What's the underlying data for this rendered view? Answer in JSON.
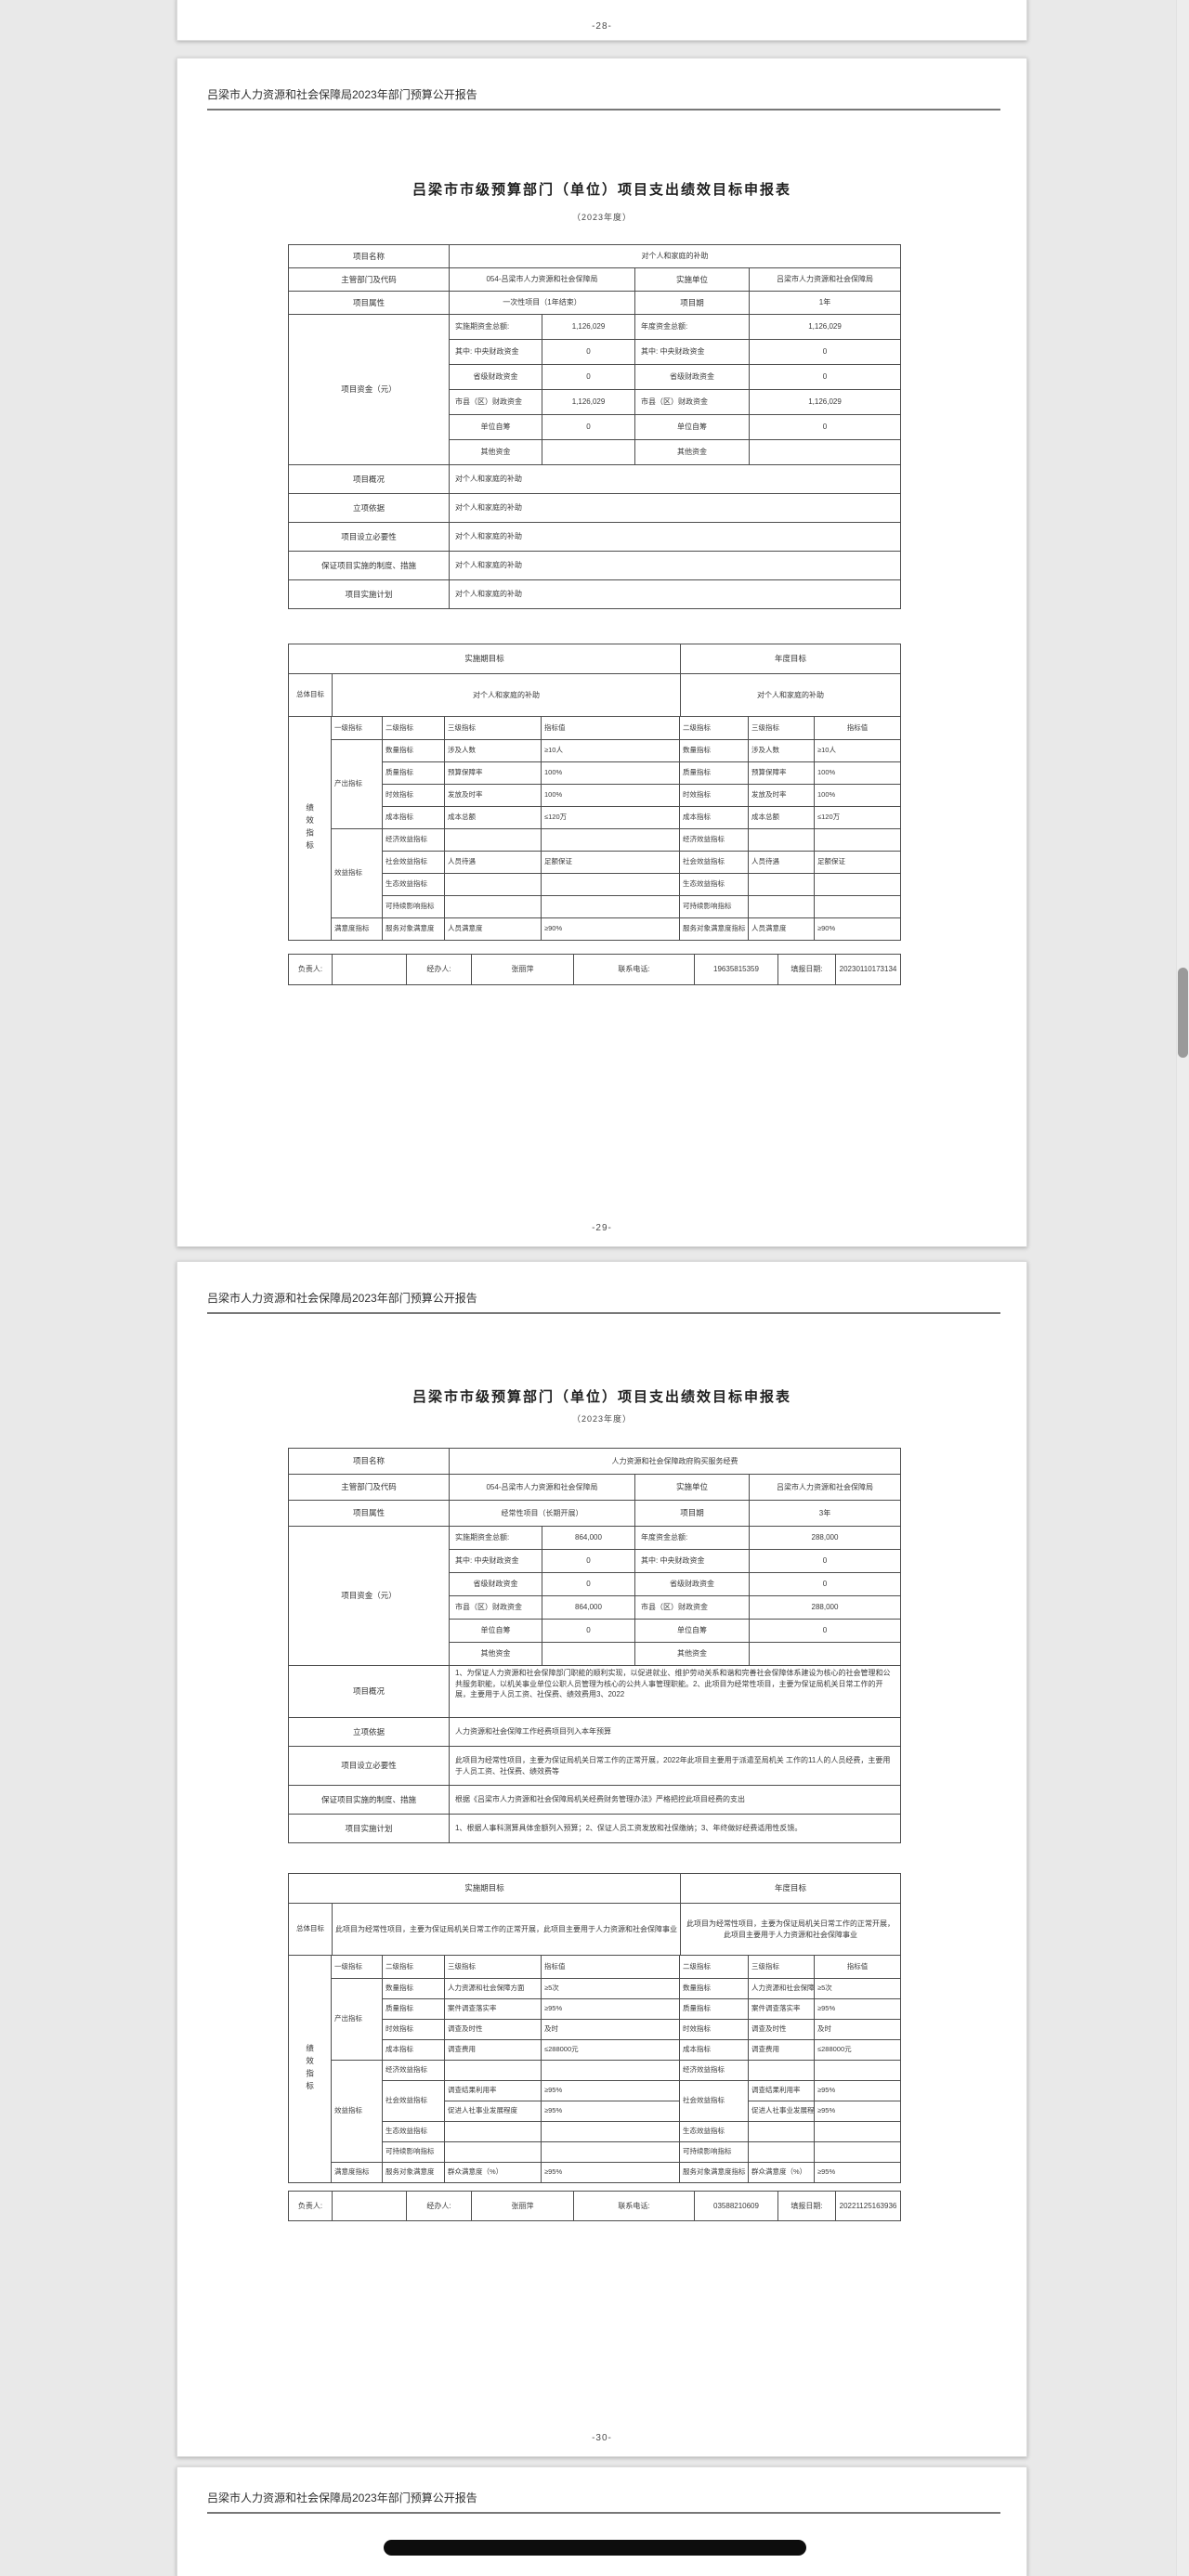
{
  "prev_page_number": "-28-",
  "colors": {
    "canvas": "#e9e9e9",
    "page": "#ffffff",
    "table_border": "#4d4d4d",
    "text": "#333333",
    "scroll_thumb": "#9a9a9a",
    "redaction": "#0d0d0d"
  },
  "next_page": {
    "header": "吕梁市人力资源和社会保障局2023年部门预算公开报告"
  },
  "pages": [
    {
      "page_number": "-29-",
      "header": "吕梁市人力资源和社会保障局2023年部门预算公开报告",
      "title": "吕梁市市级预算部门（单位）项目支出绩效目标申报表",
      "subtitle": "（2023年度）",
      "info": {
        "name_label": "项目名称",
        "name": "对个人和家庭的补助",
        "dept_label": "主管部门及代码",
        "dept": "054-吕梁市人力资源和社会保障局",
        "impl_label": "实施单位",
        "impl": "吕梁市人力资源和社会保障局",
        "attr_label": "项目属性",
        "attr": "一次性项目（1年结束）",
        "period_label": "项目期",
        "period": "1年"
      },
      "funds": {
        "label": "项目资金（元）",
        "rows": [
          [
            "实施期资金总额:",
            "1,126,029",
            "年度资金总额:",
            "1,126,029"
          ],
          [
            "其中: 中央财政资金",
            "0",
            "其中: 中央财政资金",
            "0"
          ],
          [
            "省级财政资金",
            "0",
            "省级财政资金",
            "0"
          ],
          [
            "市县（区）财政资金",
            "1,126,029",
            "市县（区）财政资金",
            "1,126,029"
          ],
          [
            "单位自筹",
            "0",
            "单位自筹",
            "0"
          ],
          [
            "其他资金",
            "",
            "其他资金",
            ""
          ]
        ]
      },
      "descriptions": [
        {
          "label": "项目概况",
          "text": "对个人和家庭的补助"
        },
        {
          "label": "立项依据",
          "text": "对个人和家庭的补助"
        },
        {
          "label": "项目设立必要性",
          "text": "对个人和家庭的补助"
        },
        {
          "label": "保证项目实施的制度、措施",
          "text": "对个人和家庭的补助"
        },
        {
          "label": "项目实施计划",
          "text": "对个人和家庭的补助"
        }
      ],
      "goals": {
        "impl_header": "实施期目标",
        "year_header": "年度目标",
        "overall_label": "总体目标",
        "impl_goal": "对个人和家庭的补助",
        "year_goal": "对个人和家庭的补助"
      },
      "indicators": {
        "side_label": "绩效指标",
        "headers": [
          "一级指标",
          "二级指标",
          "三级指标",
          "指标值",
          "二级指标",
          "三级指标",
          "指标值"
        ],
        "rows": [
          [
            {
              "t": "产出指标",
              "rs": 4
            },
            "数量指标",
            "涉及人数",
            "≥10人",
            "数量指标",
            "涉及人数",
            "≥10人"
          ],
          [
            null,
            "质量指标",
            "预算保障率",
            "100%",
            "质量指标",
            "预算保障率",
            "100%"
          ],
          [
            null,
            "时效指标",
            "发放及时率",
            "100%",
            "时效指标",
            "发放及时率",
            "100%"
          ],
          [
            null,
            "成本指标",
            "成本总额",
            "≤120万",
            "成本指标",
            "成本总额",
            "≤120万"
          ],
          [
            {
              "t": "效益指标",
              "rs": 4
            },
            "经济效益指标",
            "",
            "",
            "经济效益指标",
            "",
            ""
          ],
          [
            null,
            "社会效益指标",
            "人员待遇",
            "足额保证",
            "社会效益指标",
            "人员待遇",
            "足额保证"
          ],
          [
            null,
            "生态效益指标",
            "",
            "",
            "生态效益指标",
            "",
            ""
          ],
          [
            null,
            "可持续影响指标",
            "",
            "",
            "可持续影响指标",
            "",
            ""
          ],
          [
            "满意度指标",
            "服务对象满意度",
            "人员满意度",
            "≥90%",
            "服务对象满意度指标",
            "人员满意度",
            "≥90%"
          ]
        ]
      },
      "footer": {
        "owner_label": "负责人:",
        "owner": "",
        "handler_label": "经办人:",
        "handler": "张丽萍",
        "phone_label": "联系电话:",
        "phone": "19635815359",
        "date_label": "填报日期:",
        "date": "20230110173134"
      }
    },
    {
      "page_number": "-30-",
      "header": "吕梁市人力资源和社会保障局2023年部门预算公开报告",
      "title": "吕梁市市级预算部门（单位）项目支出绩效目标申报表",
      "subtitle": "（2023年度）",
      "info": {
        "name_label": "项目名称",
        "name": "人力资源和社会保障政府购买服务经费",
        "dept_label": "主管部门及代码",
        "dept": "054-吕梁市人力资源和社会保障局",
        "impl_label": "实施单位",
        "impl": "吕梁市人力资源和社会保障局",
        "attr_label": "项目属性",
        "attr": "经常性项目（长期开展）",
        "period_label": "项目期",
        "period": "3年"
      },
      "funds": {
        "label": "项目资金（元）",
        "rows": [
          [
            "实施期资金总额:",
            "864,000",
            "年度资金总额:",
            "288,000"
          ],
          [
            "其中: 中央财政资金",
            "0",
            "其中: 中央财政资金",
            "0"
          ],
          [
            "省级财政资金",
            "0",
            "省级财政资金",
            "0"
          ],
          [
            "市县（区）财政资金",
            "864,000",
            "市县（区）财政资金",
            "288,000"
          ],
          [
            "单位自筹",
            "0",
            "单位自筹",
            "0"
          ],
          [
            "其他资金",
            "",
            "其他资金",
            ""
          ]
        ]
      },
      "descriptions": [
        {
          "label": "项目概况",
          "text": "1、为保证人力资源和社会保障部门职能的顺利实现，以促进就业、维护劳动关系和谐和完善社会保障体系建设为核心的社会管理和公共服务职能，以机关事业单位公职人员管理为核心的公共人事管理职能。2、此项目为经常性项目，主要为保证局机关日常工作的开展，主要用于人员工资、社保费、绩效费用3、2022"
        },
        {
          "label": "立项依据",
          "text": "人力资源和社会保障工作经费项目列入本年预算"
        },
        {
          "label": "项目设立必要性",
          "text": "此项目为经常性项目，主要为保证局机关日常工作的正常开展，2022年此项目主要用于派遣至局机关 工作的11人的人员经费，主要用于人员工资、社保费、绩效费等"
        },
        {
          "label": "保证项目实施的制度、措施",
          "text": "根据《吕梁市人力资源和社会保障局机关经费财务管理办法》严格把控此项目经费的支出"
        },
        {
          "label": "项目实施计划",
          "text": "1、根据人事科测算具体金额列入预算；2、保证人员工资发放和社保缴纳；3、年终做好经费适用性反馈。"
        }
      ],
      "goals": {
        "impl_header": "实施期目标",
        "year_header": "年度目标",
        "overall_label": "总体目标",
        "impl_goal": "此项目为经常性项目，主要为保证局机关日常工作的正常开展，此项目主要用于人力资源和社会保障事业",
        "year_goal": "此项目为经常性项目，主要为保证局机关日常工作的正常开展，此项目主要用于人力资源和社会保障事业"
      },
      "indicators": {
        "side_label": "绩效指标",
        "headers": [
          "一级指标",
          "二级指标",
          "三级指标",
          "指标值",
          "二级指标",
          "三级指标",
          "指标值"
        ],
        "rows": [
          [
            {
              "t": "产出指标",
              "rs": 4
            },
            "数量指标",
            "人力资源和社会保障方面",
            "≥5次",
            "数量指标",
            "人力资源和社会保障方面",
            "≥5次"
          ],
          [
            null,
            "质量指标",
            "案件调查落实率",
            "≥95%",
            "质量指标",
            "案件调查落实率",
            "≥95%"
          ],
          [
            null,
            "时效指标",
            "调查及时性",
            "及时",
            "时效指标",
            "调查及时性",
            "及时"
          ],
          [
            null,
            "成本指标",
            "调查费用",
            "≤288000元",
            "成本指标",
            "调查费用",
            "≤288000元"
          ],
          [
            {
              "t": "效益指标",
              "rs": 5
            },
            "经济效益指标",
            "",
            "",
            "经济效益指标",
            "",
            ""
          ],
          [
            null,
            {
              "t": "社会效益指标",
              "rs": 2
            },
            "调查结果利用率",
            "≥95%",
            {
              "t": "社会效益指标",
              "rs": 2
            },
            "调查结果利用率",
            "≥95%"
          ],
          [
            null,
            null,
            "促进人社事业发展程度",
            "≥95%",
            null,
            "促进人社事业发展程度",
            "≥95%"
          ],
          [
            null,
            "生态效益指标",
            "",
            "",
            "生态效益指标",
            "",
            ""
          ],
          [
            null,
            "可持续影响指标",
            "",
            "",
            "可持续影响指标",
            "",
            ""
          ],
          [
            "满意度指标",
            "服务对象满意度",
            "群众满意度（%）",
            "≥95%",
            "服务对象满意度指标",
            "群众满意度（%）",
            "≥95%"
          ]
        ]
      },
      "footer": {
        "owner_label": "负责人:",
        "owner": "",
        "handler_label": "经办人:",
        "handler": "张丽萍",
        "phone_label": "联系电话:",
        "phone": "03588210609",
        "date_label": "填报日期:",
        "date": "20221125163936"
      }
    }
  ]
}
